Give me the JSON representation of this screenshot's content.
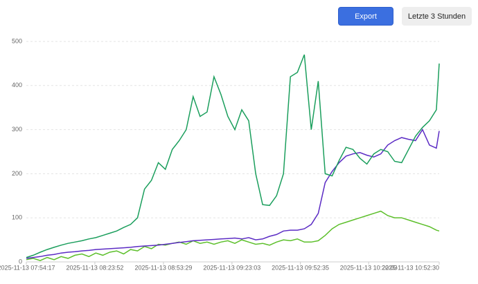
{
  "toolbar": {
    "export": "Export",
    "range": "Letzte 3 Stunden"
  },
  "chart_data": {
    "type": "line",
    "x": [
      "2025-11-13 07:54:17",
      "2025-11-13 07:57:17",
      "2025-11-13 08:00:17",
      "2025-11-13 08:03:17",
      "2025-11-13 08:06:17",
      "2025-11-13 08:09:17",
      "2025-11-13 08:12:17",
      "2025-11-13 08:15:17",
      "2025-11-13 08:18:17",
      "2025-11-13 08:21:17",
      "2025-11-13 08:24:17",
      "2025-11-13 08:27:17",
      "2025-11-13 08:30:17",
      "2025-11-13 08:33:17",
      "2025-11-13 08:36:17",
      "2025-11-13 08:39:17",
      "2025-11-13 08:42:17",
      "2025-11-13 08:45:17",
      "2025-11-13 08:48:17",
      "2025-11-13 08:51:17",
      "2025-11-13 08:54:17",
      "2025-11-13 08:57:17",
      "2025-11-13 09:00:17",
      "2025-11-13 09:03:17",
      "2025-11-13 09:06:17",
      "2025-11-13 09:09:17",
      "2025-11-13 09:12:17",
      "2025-11-13 09:15:17",
      "2025-11-13 09:18:17",
      "2025-11-13 09:21:17",
      "2025-11-13 09:24:17",
      "2025-11-13 09:27:17",
      "2025-11-13 09:30:17",
      "2025-11-13 09:33:17",
      "2025-11-13 09:36:17",
      "2025-11-13 09:39:17",
      "2025-11-13 09:42:17",
      "2025-11-13 09:45:17",
      "2025-11-13 09:48:17",
      "2025-11-13 09:51:17",
      "2025-11-13 09:54:17",
      "2025-11-13 09:57:17",
      "2025-11-13 10:00:17",
      "2025-11-13 10:03:17",
      "2025-11-13 10:06:17",
      "2025-11-13 10:09:17",
      "2025-11-13 10:12:17",
      "2025-11-13 10:15:17",
      "2025-11-13 10:18:17",
      "2025-11-13 10:21:17",
      "2025-11-13 10:24:17",
      "2025-11-13 10:27:17",
      "2025-11-13 10:30:17",
      "2025-11-13 10:33:17",
      "2025-11-13 10:36:17",
      "2025-11-13 10:39:17",
      "2025-11-13 10:42:17",
      "2025-11-13 10:45:17",
      "2025-11-13 10:48:17",
      "2025-11-13 10:51:17",
      "2025-11-13 10:52:30"
    ],
    "series": [
      {
        "color": "#1a9e5c",
        "values": [
          10,
          15,
          22,
          28,
          33,
          38,
          42,
          45,
          48,
          52,
          55,
          60,
          65,
          70,
          78,
          85,
          100,
          165,
          185,
          225,
          210,
          255,
          275,
          300,
          375,
          330,
          340,
          420,
          380,
          330,
          300,
          345,
          320,
          200,
          130,
          128,
          150,
          200,
          420,
          430,
          470,
          300,
          410,
          200,
          195,
          230,
          260,
          255,
          235,
          222,
          245,
          255,
          250,
          228,
          225,
          255,
          285,
          305,
          320,
          345,
          450
        ]
      },
      {
        "color": "#5b2bc4",
        "values": [
          8,
          10,
          12,
          15,
          17,
          20,
          22,
          23,
          25,
          26,
          28,
          29,
          30,
          31,
          32,
          33,
          35,
          36,
          37,
          38,
          40,
          42,
          44,
          46,
          48,
          49,
          50,
          51,
          52,
          53,
          54,
          52,
          55,
          50,
          52,
          58,
          62,
          70,
          72,
          72,
          75,
          85,
          110,
          180,
          205,
          225,
          240,
          245,
          248,
          242,
          238,
          245,
          265,
          275,
          282,
          278,
          275,
          300,
          265,
          258,
          297
        ]
      },
      {
        "color": "#5cbf2a",
        "values": [
          5,
          8,
          3,
          10,
          5,
          12,
          8,
          15,
          18,
          12,
          20,
          15,
          22,
          25,
          18,
          28,
          25,
          35,
          30,
          40,
          38,
          42,
          45,
          40,
          48,
          42,
          45,
          40,
          45,
          48,
          42,
          50,
          45,
          40,
          42,
          38,
          45,
          50,
          48,
          52,
          45,
          45,
          48,
          60,
          75,
          85,
          90,
          95,
          100,
          105,
          110,
          115,
          105,
          100,
          100,
          95,
          90,
          85,
          80,
          72,
          70
        ]
      }
    ],
    "xlim": [
      "2025-11-13 07:54:17",
      "2025-11-13 10:52:30"
    ],
    "xticks": [
      "2025-11-13 07:54:17",
      "2025-11-13 08:23:52",
      "2025-11-13 08:53:29",
      "2025-11-13 09:23:03",
      "2025-11-13 09:52:35",
      "2025-11-13 10:22:03",
      "2025-11-13 10:52:30"
    ],
    "ylim": [
      0,
      500
    ],
    "yticks": [
      0,
      100,
      200,
      300,
      400,
      500
    ],
    "grid": true
  }
}
